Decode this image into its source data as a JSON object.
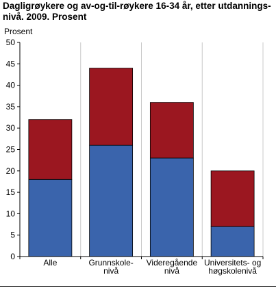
{
  "title_lines": [
    "Dagligrøykere og av-og-til-røykere 16-34 år, etter utdannings-",
    "nivå. 2009. Prosent"
  ],
  "chart_data": {
    "type": "bar",
    "stacked": true,
    "title": "Dagligrøykere og av-og-til-røykere 16-34 år, etter utdanningsnivå. 2009. Prosent",
    "ylabel": "Prosent",
    "xlabel": "",
    "ylim": [
      0,
      50
    ],
    "yticks": [
      0,
      5,
      10,
      15,
      20,
      25,
      30,
      35,
      40,
      45,
      50
    ],
    "grid": "vertical",
    "legend": "none",
    "categories": [
      [
        "Alle"
      ],
      [
        "Grunnskole-",
        "nivå"
      ],
      [
        "Videregående",
        "nivå"
      ],
      [
        "Universitets- og",
        "høgskolenivå"
      ]
    ],
    "series": [
      {
        "values": [
          18,
          26,
          23,
          7
        ],
        "color": "#3a64ac"
      },
      {
        "values": [
          14,
          18,
          13,
          13
        ],
        "color": "#9b1720"
      }
    ]
  }
}
